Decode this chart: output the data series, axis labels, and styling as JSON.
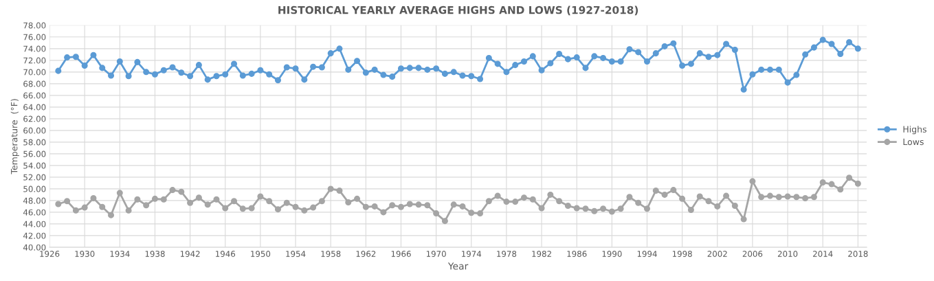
{
  "chart_data": {
    "type": "line",
    "title": "HISTORICAL YEARLY AVERAGE HIGHS AND LOWS (1927-2018)",
    "xlabel": "Year",
    "ylabel": "Temperature  (°F)",
    "x": [
      1927,
      1928,
      1929,
      1930,
      1931,
      1932,
      1933,
      1934,
      1935,
      1936,
      1937,
      1938,
      1939,
      1940,
      1941,
      1942,
      1943,
      1944,
      1945,
      1946,
      1947,
      1948,
      1949,
      1950,
      1951,
      1952,
      1953,
      1954,
      1955,
      1956,
      1957,
      1958,
      1959,
      1960,
      1961,
      1962,
      1963,
      1964,
      1965,
      1966,
      1967,
      1968,
      1969,
      1970,
      1971,
      1972,
      1973,
      1974,
      1975,
      1976,
      1977,
      1978,
      1979,
      1980,
      1981,
      1982,
      1983,
      1984,
      1985,
      1986,
      1987,
      1988,
      1989,
      1990,
      1991,
      1992,
      1993,
      1994,
      1995,
      1996,
      1997,
      1998,
      1999,
      2000,
      2001,
      2002,
      2003,
      2004,
      2005,
      2006,
      2007,
      2008,
      2009,
      2010,
      2011,
      2012,
      2013,
      2014,
      2015,
      2016,
      2017,
      2018
    ],
    "series": [
      {
        "name": "Highs",
        "color": "#5b9bd5",
        "values": [
          70.2,
          72.5,
          72.6,
          71.1,
          72.9,
          70.7,
          69.4,
          71.8,
          69.3,
          71.7,
          70.0,
          69.6,
          70.3,
          70.8,
          69.9,
          69.3,
          71.2,
          68.7,
          69.3,
          69.6,
          71.4,
          69.4,
          69.7,
          70.3,
          69.6,
          68.6,
          70.8,
          70.6,
          68.7,
          70.9,
          70.8,
          73.2,
          74.0,
          70.4,
          71.9,
          69.9,
          70.4,
          69.5,
          69.2,
          70.6,
          70.7,
          70.7,
          70.4,
          70.6,
          69.7,
          70.0,
          69.4,
          69.3,
          68.8,
          72.4,
          71.4,
          70.0,
          71.2,
          71.8,
          72.7,
          70.3,
          71.5,
          73.1,
          72.2,
          72.5,
          70.7,
          72.7,
          72.4,
          71.8,
          71.8,
          73.9,
          73.4,
          71.8,
          73.2,
          74.4,
          74.9,
          71.1,
          71.4,
          73.2,
          72.6,
          72.9,
          74.8,
          73.8,
          67.0,
          69.6,
          70.4,
          70.4,
          70.4,
          68.2,
          69.5,
          73.0,
          74.2,
          75.5,
          74.8,
          73.1,
          75.1,
          74.0
        ]
      },
      {
        "name": "Lows",
        "color": "#a5a5a5",
        "values": [
          47.4,
          47.9,
          46.3,
          46.8,
          48.4,
          46.9,
          45.5,
          49.3,
          46.3,
          48.2,
          47.2,
          48.3,
          48.2,
          49.8,
          49.5,
          47.6,
          48.5,
          47.3,
          48.2,
          46.7,
          47.9,
          46.6,
          46.7,
          48.7,
          47.9,
          46.5,
          47.6,
          46.9,
          46.3,
          46.8,
          47.9,
          50.0,
          49.7,
          47.7,
          48.3,
          46.9,
          47.0,
          46.0,
          47.2,
          46.9,
          47.4,
          47.3,
          47.2,
          45.8,
          44.5,
          47.3,
          47.0,
          45.9,
          45.8,
          47.9,
          48.8,
          47.8,
          47.8,
          48.5,
          48.2,
          46.7,
          49.0,
          47.9,
          47.1,
          46.7,
          46.6,
          46.2,
          46.6,
          46.1,
          46.6,
          48.6,
          47.6,
          46.6,
          49.7,
          49.0,
          49.8,
          48.3,
          46.4,
          48.7,
          47.9,
          47.0,
          48.8,
          47.1,
          44.8,
          51.3,
          48.6,
          48.8,
          48.6,
          48.7,
          48.6,
          48.4,
          48.6,
          51.1,
          50.8,
          49.9,
          51.9,
          50.9
        ]
      }
    ],
    "xlim": [
      1926,
      2019
    ],
    "xticks": [
      1926,
      1930,
      1934,
      1938,
      1942,
      1946,
      1950,
      1954,
      1958,
      1962,
      1966,
      1970,
      1974,
      1978,
      1982,
      1986,
      1990,
      1994,
      1998,
      2002,
      2006,
      2010,
      2014,
      2018
    ],
    "ylim": [
      40,
      78
    ],
    "yticks": [
      {
        "value": 40,
        "label": "40.00"
      },
      {
        "value": 42,
        "label": "42.00"
      },
      {
        "value": 44,
        "label": "44.00"
      },
      {
        "value": 46,
        "label": "46.00"
      },
      {
        "value": 48,
        "label": "48.00"
      },
      {
        "value": 50,
        "label": "50.00"
      },
      {
        "value": 52,
        "label": "52.00"
      },
      {
        "value": 54,
        "label": "54.00"
      },
      {
        "value": 56,
        "label": "56.00"
      },
      {
        "value": 58,
        "label": "58.00"
      },
      {
        "value": 60,
        "label": "60.00"
      },
      {
        "value": 62,
        "label": "62.00"
      },
      {
        "value": 64,
        "label": "64.00"
      },
      {
        "value": 66,
        "label": "66.00"
      },
      {
        "value": 68,
        "label": "68.00"
      },
      {
        "value": 70,
        "label": "70.00"
      },
      {
        "value": 72,
        "label": "72.00"
      },
      {
        "value": 74,
        "label": "74.00"
      },
      {
        "value": 76,
        "label": "76.00"
      },
      {
        "value": 78,
        "label": "78.00"
      }
    ],
    "grid": true,
    "legend": "right",
    "marker": "circle",
    "line_style": "solid"
  }
}
